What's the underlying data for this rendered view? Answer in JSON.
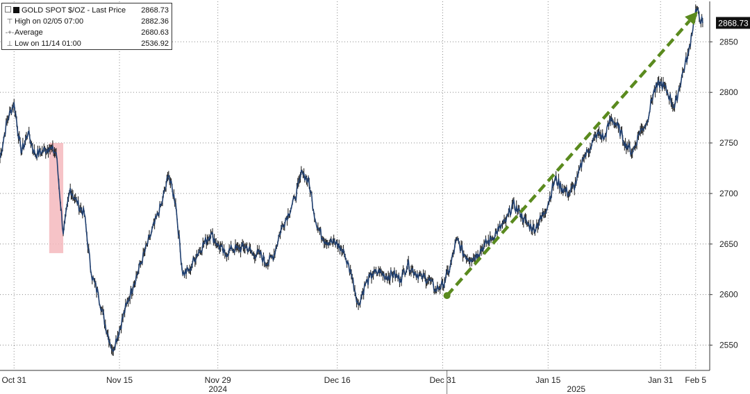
{
  "legend": {
    "title": "GOLD SPOT $/OZ - Last Price",
    "last_price": "2868.73",
    "high_label": "High on 02/05 07:00",
    "high_value": "2882.36",
    "average_label": "Average",
    "average_value": "2680.63",
    "low_label": "Low on 11/14 01:00",
    "low_value": "2536.92"
  },
  "last_price_tag": "2868.73",
  "colors": {
    "price_line": "#1f3f70",
    "price_wick": "#111111",
    "trend_arrow": "#5a8a1e",
    "highlight": "#f4b8bd",
    "grid": "#888888",
    "last_tag_bg": "#111111"
  },
  "chart_data": {
    "type": "line",
    "title": "GOLD SPOT $/OZ - Last Price",
    "xlabel": "",
    "ylabel": "",
    "x_axis_type": "date",
    "xlim": [
      "2024-10-29",
      "2025-02-07"
    ],
    "ylim": [
      2525,
      2890
    ],
    "y_ticks": [
      2550,
      2600,
      2650,
      2700,
      2750,
      2800,
      2850
    ],
    "x_ticks": [
      {
        "label": "Oct 31",
        "date": "2024-10-31"
      },
      {
        "label": "Nov 15",
        "date": "2024-11-15"
      },
      {
        "label": "Nov 29",
        "date": "2024-11-29"
      },
      {
        "label": "Dec 16",
        "date": "2024-12-16"
      },
      {
        "label": "Dec 31",
        "date": "2024-12-31"
      },
      {
        "label": "Jan 15",
        "date": "2025-01-15"
      },
      {
        "label": "Jan 31",
        "date": "2025-01-31"
      },
      {
        "label": "Feb 5",
        "date": "2025-02-05"
      }
    ],
    "year_labels": [
      {
        "label": "2024",
        "date": "2024-11-29"
      },
      {
        "label": "2025",
        "date": "2025-01-19"
      }
    ],
    "grid": true,
    "legend_position": "top-left",
    "series": [
      {
        "name": "GOLD SPOT $/OZ",
        "points": [
          [
            "2024-10-29",
            2735
          ],
          [
            "2024-10-30",
            2772
          ],
          [
            "2024-10-31",
            2790
          ],
          [
            "2024-11-01",
            2740
          ],
          [
            "2024-11-02",
            2760
          ],
          [
            "2024-11-03",
            2738
          ],
          [
            "2024-11-04",
            2742
          ],
          [
            "2024-11-05",
            2745
          ],
          [
            "2024-11-06",
            2740
          ],
          [
            "2024-11-07",
            2660
          ],
          [
            "2024-11-08",
            2705
          ],
          [
            "2024-11-09",
            2690
          ],
          [
            "2024-11-10",
            2680
          ],
          [
            "2024-11-11",
            2620
          ],
          [
            "2024-11-12",
            2600
          ],
          [
            "2024-11-13",
            2570
          ],
          [
            "2024-11-14",
            2545
          ],
          [
            "2024-11-15",
            2565
          ],
          [
            "2024-11-16",
            2590
          ],
          [
            "2024-11-17",
            2610
          ],
          [
            "2024-11-18",
            2630
          ],
          [
            "2024-11-19",
            2650
          ],
          [
            "2024-11-20",
            2670
          ],
          [
            "2024-11-21",
            2690
          ],
          [
            "2024-11-22",
            2718
          ],
          [
            "2024-11-23",
            2690
          ],
          [
            "2024-11-24",
            2620
          ],
          [
            "2024-11-25",
            2625
          ],
          [
            "2024-11-26",
            2640
          ],
          [
            "2024-11-27",
            2650
          ],
          [
            "2024-11-28",
            2660
          ],
          [
            "2024-11-29",
            2650
          ],
          [
            "2024-11-30",
            2640
          ],
          [
            "2024-12-01",
            2645
          ],
          [
            "2024-12-02",
            2645
          ],
          [
            "2024-12-03",
            2648
          ],
          [
            "2024-12-04",
            2640
          ],
          [
            "2024-12-05",
            2640
          ],
          [
            "2024-12-06",
            2630
          ],
          [
            "2024-12-07",
            2640
          ],
          [
            "2024-12-08",
            2665
          ],
          [
            "2024-12-09",
            2680
          ],
          [
            "2024-12-10",
            2695
          ],
          [
            "2024-12-11",
            2722
          ],
          [
            "2024-12-12",
            2710
          ],
          [
            "2024-12-13",
            2670
          ],
          [
            "2024-12-14",
            2655
          ],
          [
            "2024-12-15",
            2652
          ],
          [
            "2024-12-16",
            2650
          ],
          [
            "2024-12-17",
            2640
          ],
          [
            "2024-12-18",
            2620
          ],
          [
            "2024-12-19",
            2590
          ],
          [
            "2024-12-20",
            2610
          ],
          [
            "2024-12-21",
            2620
          ],
          [
            "2024-12-22",
            2622
          ],
          [
            "2024-12-23",
            2618
          ],
          [
            "2024-12-24",
            2620
          ],
          [
            "2024-12-25",
            2615
          ],
          [
            "2024-12-26",
            2630
          ],
          [
            "2024-12-27",
            2622
          ],
          [
            "2024-12-28",
            2618
          ],
          [
            "2024-12-29",
            2615
          ],
          [
            "2024-12-30",
            2605
          ],
          [
            "2024-12-31",
            2610
          ],
          [
            "2025-01-01",
            2625
          ],
          [
            "2025-01-02",
            2655
          ],
          [
            "2025-01-03",
            2640
          ],
          [
            "2025-01-04",
            2635
          ],
          [
            "2025-01-05",
            2640
          ],
          [
            "2025-01-06",
            2650
          ],
          [
            "2025-01-07",
            2655
          ],
          [
            "2025-01-08",
            2665
          ],
          [
            "2025-01-09",
            2672
          ],
          [
            "2025-01-10",
            2690
          ],
          [
            "2025-01-11",
            2680
          ],
          [
            "2025-01-12",
            2670
          ],
          [
            "2025-01-13",
            2665
          ],
          [
            "2025-01-14",
            2675
          ],
          [
            "2025-01-15",
            2690
          ],
          [
            "2025-01-16",
            2715
          ],
          [
            "2025-01-17",
            2705
          ],
          [
            "2025-01-18",
            2700
          ],
          [
            "2025-01-19",
            2710
          ],
          [
            "2025-01-20",
            2735
          ],
          [
            "2025-01-21",
            2745
          ],
          [
            "2025-01-22",
            2760
          ],
          [
            "2025-01-23",
            2755
          ],
          [
            "2025-01-24",
            2775
          ],
          [
            "2025-01-25",
            2765
          ],
          [
            "2025-01-26",
            2750
          ],
          [
            "2025-01-27",
            2740
          ],
          [
            "2025-01-28",
            2760
          ],
          [
            "2025-01-29",
            2770
          ],
          [
            "2025-01-30",
            2800
          ],
          [
            "2025-01-31",
            2810
          ],
          [
            "2025-02-01",
            2800
          ],
          [
            "2025-02-02",
            2785
          ],
          [
            "2025-02-03",
            2815
          ],
          [
            "2025-02-04",
            2840
          ],
          [
            "2025-02-05",
            2882
          ],
          [
            "2025-02-06",
            2869
          ]
        ]
      }
    ],
    "annotations": [
      {
        "type": "arrow",
        "from": [
          "2025-01-01",
          2599
        ],
        "to": [
          "2025-02-05",
          2880
        ]
      },
      {
        "type": "highlight",
        "x_range": [
          "2024-11-05",
          "2024-11-07"
        ],
        "y_range": [
          2641,
          2750
        ]
      },
      {
        "type": "last_price_tag",
        "value": 2868.73
      }
    ]
  }
}
